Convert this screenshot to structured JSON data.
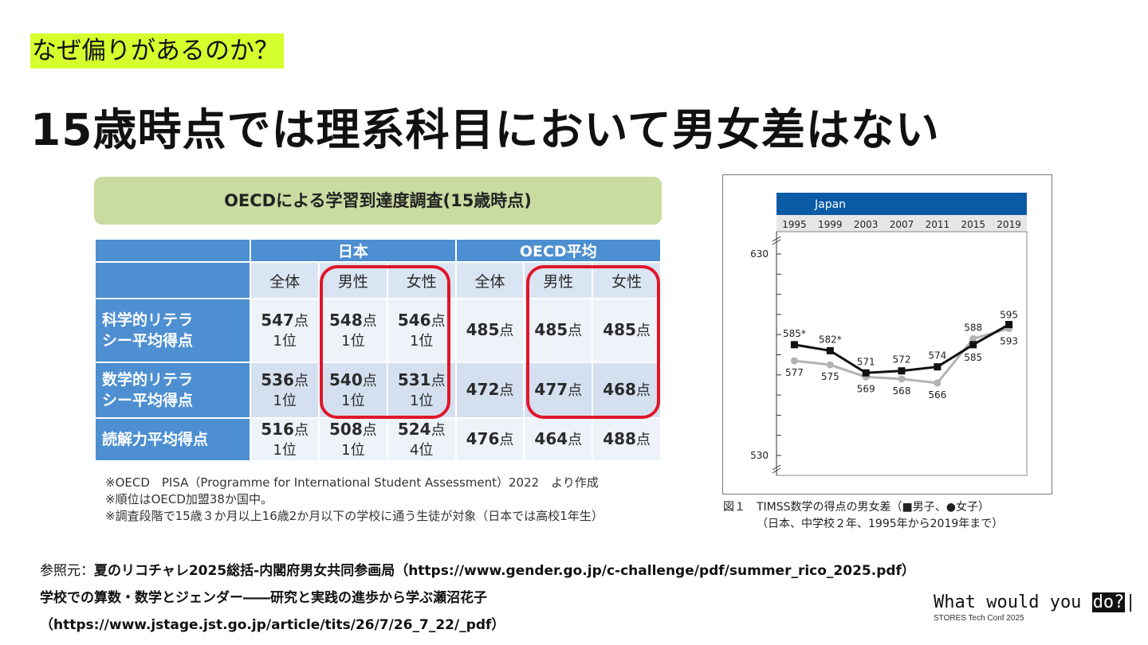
{
  "slide": {
    "tag": "なぜ偏りがあるのか？",
    "title": "15歳時点では理系科目において男女差はない"
  },
  "oecd_table": {
    "banner": "OECDによる学習到達度調査(15歳時点)",
    "group_headers": [
      "日本",
      "OECD平均"
    ],
    "columns": [
      "全体",
      "男性",
      "女性",
      "全体",
      "男性",
      "女性"
    ],
    "rows": [
      {
        "label_line1": "科学的リテラ",
        "label_line2": "シー平均得点",
        "cells": [
          {
            "score": "547",
            "unit": "点",
            "rank": "1位"
          },
          {
            "score": "548",
            "unit": "点",
            "rank": "1位"
          },
          {
            "score": "546",
            "unit": "点",
            "rank": "1位"
          },
          {
            "score": "485",
            "unit": "点",
            "rank": ""
          },
          {
            "score": "485",
            "unit": "点",
            "rank": ""
          },
          {
            "score": "485",
            "unit": "点",
            "rank": ""
          }
        ]
      },
      {
        "label_line1": "数学的リテラ",
        "label_line2": "シー平均得点",
        "cells": [
          {
            "score": "536",
            "unit": "点",
            "rank": "1位"
          },
          {
            "score": "540",
            "unit": "点",
            "rank": "1位"
          },
          {
            "score": "531",
            "unit": "点",
            "rank": "1位"
          },
          {
            "score": "472",
            "unit": "点",
            "rank": ""
          },
          {
            "score": "477",
            "unit": "点",
            "rank": ""
          },
          {
            "score": "468",
            "unit": "点",
            "rank": ""
          }
        ]
      },
      {
        "label_line1": "読解力平均得点",
        "label_line2": "",
        "cells": [
          {
            "score": "516",
            "unit": "点",
            "rank": "1位"
          },
          {
            "score": "508",
            "unit": "点",
            "rank": "1位"
          },
          {
            "score": "524",
            "unit": "点",
            "rank": "4位"
          },
          {
            "score": "476",
            "unit": "点",
            "rank": ""
          },
          {
            "score": "464",
            "unit": "点",
            "rank": ""
          },
          {
            "score": "488",
            "unit": "点",
            "rank": ""
          }
        ]
      }
    ],
    "notes": [
      "※OECD　PISA（Programme for International Student Assessment）2022　より作成",
      "※順位はOECD加盟38か国中。",
      "※調査段階で15歳３か月以上16歳2か月以下の学校に通う生徒が対象（日本では高校1年生）"
    ]
  },
  "chart_data": {
    "type": "line",
    "title": "Japan",
    "categories": [
      "1995",
      "1999",
      "2003",
      "2007",
      "2011",
      "2015",
      "2019"
    ],
    "ylim": [
      530,
      630
    ],
    "yticks": [
      "630",
      "530"
    ],
    "series": [
      {
        "name": "男子",
        "values": [
          585,
          582,
          571,
          572,
          574,
          585,
          595
        ],
        "labels": [
          "585*",
          "582*",
          "571",
          "572",
          "574",
          "585",
          "595"
        ],
        "color": "#111111"
      },
      {
        "name": "女子",
        "values": [
          577,
          575,
          569,
          568,
          566,
          588,
          593
        ],
        "labels": [
          "577",
          "575",
          "569",
          "568",
          "566",
          "588",
          "593"
        ],
        "color": "#b3b3b3"
      }
    ],
    "caption_line1": "図１　TIMSS数学の得点の男女差（■男子、●女子）",
    "caption_line2": "（日本、中学校２年、1995年から2019年まで）"
  },
  "references": {
    "line1_prefix": "参照元：",
    "line1_text": "夏のリコチャレ2025総括-内閣府男女共同参画局（https://www.gender.go.jp/c-challenge/pdf/summer_rico_2025.pdf）",
    "line2": "学校での算数・数学とジェンダー――研究と実践の進歩から学ぶ瀬沼花子",
    "line3": "（https://www.jstage.jst.go.jp/article/tits/26/7/26_7_22/_pdf）"
  },
  "brand": {
    "main": "What would you",
    "highlight": "do?",
    "sub": "STORES Tech Conf 2025"
  }
}
